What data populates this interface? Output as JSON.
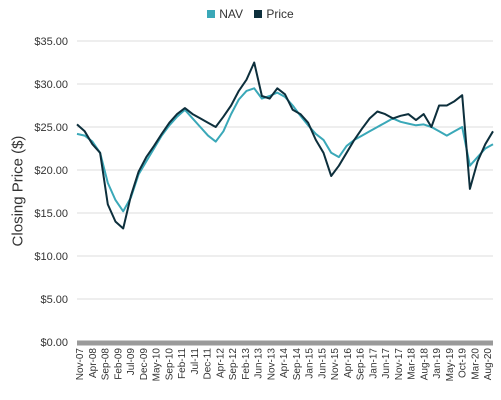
{
  "legend": [
    {
      "label": "NAV",
      "color": "#3aa8b8"
    },
    {
      "label": "Price",
      "color": "#0d2f3c"
    }
  ],
  "chart_data": {
    "type": "line",
    "title": "",
    "xlabel": "",
    "ylabel": "Closing Price ($)",
    "ylim": [
      0,
      35
    ],
    "yticks": [
      "$0.00",
      "$5.00",
      "$10.00",
      "$15.00",
      "$20.00",
      "$25.00",
      "$30.00",
      "$35.00"
    ],
    "xtick_labels": [
      "Nov-07",
      "Apr-08",
      "Sep-08",
      "Feb-09",
      "Jul-09",
      "Dec-09",
      "May-10",
      "Sep-10",
      "Feb-11",
      "Jul-11",
      "Dec-11",
      "Apr-12",
      "Sep-12",
      "Feb-13",
      "Jun-13",
      "Nov-13",
      "Apr-14",
      "Sep-14",
      "Jan-15",
      "Jun-15",
      "Nov-15",
      "Apr-16",
      "Sep-16",
      "Jan-17",
      "Jun-17",
      "Nov-17",
      "Mar-18",
      "Aug-18",
      "Jan-19",
      "May-19",
      "Oct-19",
      "Mar-20",
      "Aug-20"
    ],
    "grid": true,
    "legend_position": "top-center",
    "series": [
      {
        "name": "NAV",
        "color": "#3aa8b8",
        "values": [
          24.2,
          24.0,
          23.3,
          22.0,
          18.5,
          16.5,
          15.2,
          16.8,
          19.5,
          21.0,
          22.5,
          24.0,
          25.2,
          26.2,
          27.0,
          26.0,
          25.0,
          24.0,
          23.3,
          24.5,
          26.5,
          28.2,
          29.2,
          29.5,
          28.3,
          28.6,
          29.0,
          28.5,
          27.5,
          26.3,
          25.2,
          24.2,
          23.5,
          22.0,
          21.5,
          22.8,
          23.5,
          24.0,
          24.5,
          25.0,
          25.5,
          26.0,
          25.6,
          25.4,
          25.2,
          25.3,
          25.0,
          24.5,
          24.0,
          24.5,
          25.0,
          20.5,
          21.5,
          22.5,
          23.0
        ]
      },
      {
        "name": "Price",
        "color": "#0d2f3c",
        "values": [
          25.3,
          24.5,
          23.0,
          22.0,
          16.0,
          14.0,
          13.2,
          17.0,
          19.8,
          21.5,
          22.8,
          24.2,
          25.5,
          26.5,
          27.2,
          26.5,
          26.0,
          25.5,
          25.0,
          26.2,
          27.5,
          29.2,
          30.5,
          32.5,
          28.6,
          28.3,
          29.5,
          28.8,
          27.0,
          26.5,
          25.5,
          23.5,
          22.0,
          19.3,
          20.5,
          22.0,
          23.5,
          24.8,
          26.0,
          26.8,
          26.5,
          26.0,
          26.3,
          26.5,
          25.8,
          26.5,
          25.0,
          27.5,
          27.5,
          28.0,
          28.7,
          17.8,
          21.0,
          23.0,
          24.5
        ]
      }
    ]
  }
}
